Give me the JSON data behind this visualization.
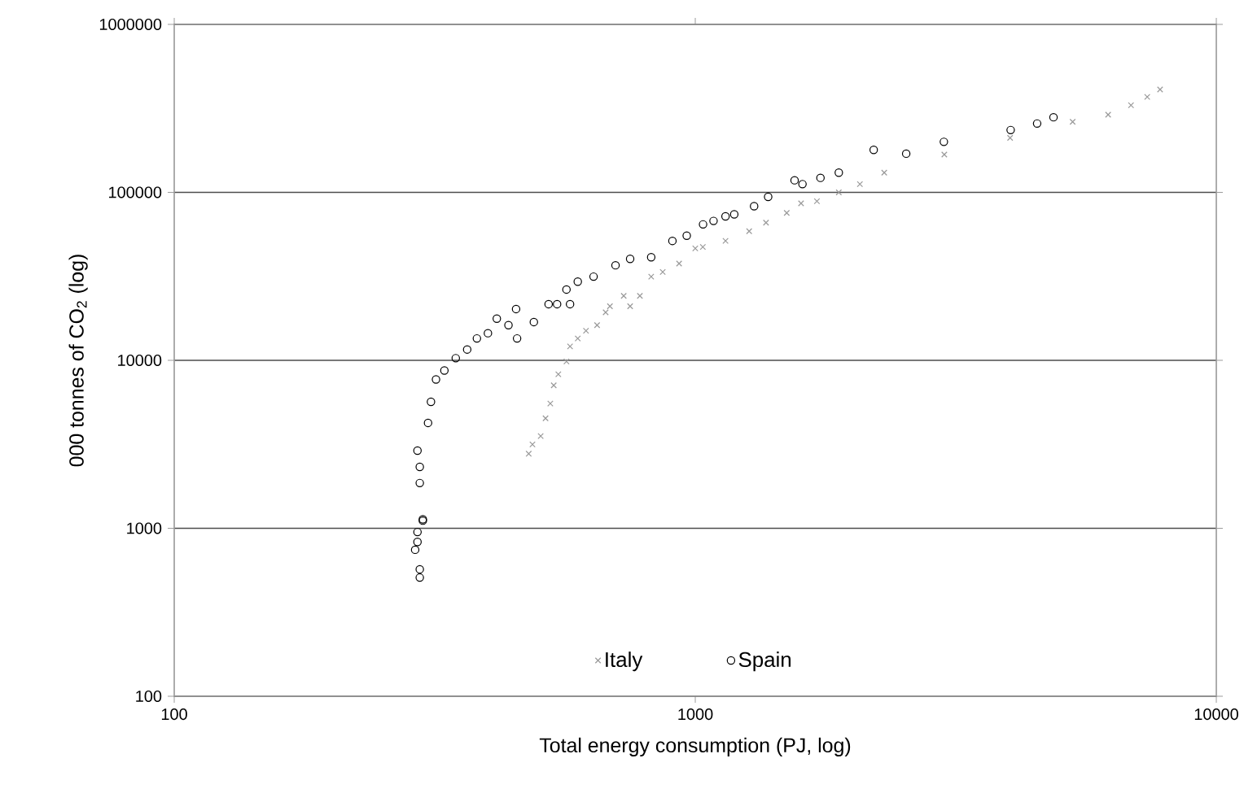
{
  "chart_data": {
    "type": "scatter",
    "xlabel": "Total energy consumption (PJ, log)",
    "ylabel": "000 tonnes of CO$_{2}$ (log)",
    "log": "xy",
    "xlim": [
      100,
      10000
    ],
    "ylim": [
      100,
      1000000
    ],
    "xticks": [
      100,
      1000,
      10000
    ],
    "yticks": [
      100,
      1000,
      10000,
      100000,
      1000000
    ],
    "grid": "y",
    "legend": "bottom",
    "series": [
      {
        "name": "Italy",
        "color": "#999999",
        "marker": "cross",
        "x": [
          479,
          487,
          505,
          516,
          527,
          535,
          546,
          566,
          575,
          595,
          617,
          648,
          673,
          686,
          729,
          750,
          783,
          823,
          866,
          931,
          1000,
          1034,
          1143,
          1269,
          1367,
          1498,
          1596,
          1712,
          1886,
          2070,
          2305,
          3006,
          4020,
          5300,
          6200,
          6860,
          7370,
          7800
        ],
        "values": [
          2780,
          3160,
          3540,
          4520,
          5530,
          7100,
          8260,
          9850,
          12100,
          13500,
          15000,
          16200,
          19300,
          21000,
          24200,
          21000,
          24200,
          31500,
          33600,
          37700,
          46400,
          47300,
          51400,
          58700,
          66000,
          75500,
          86000,
          88600,
          100000,
          112000,
          131000,
          168000,
          211000,
          263000,
          290000,
          330000,
          370000,
          410000
        ]
      },
      {
        "name": "Spain",
        "color": "#000000",
        "marker": "circle",
        "x": [
          296,
          296,
          290,
          293,
          293,
          300,
          300,
          296,
          296,
          293,
          307,
          311,
          318,
          330,
          347,
          365,
          381,
          400,
          416,
          438,
          453,
          455,
          490,
          523,
          543,
          575,
          566,
          595,
          638,
          703,
          750,
          823,
          904,
          963,
          1035,
          1084,
          1143,
          1188,
          1297,
          1380,
          1551,
          1606,
          1739,
          1886,
          2200,
          2540,
          3000,
          4030,
          4530,
          4870
        ],
        "values": [
          509,
          570,
          745,
          830,
          950,
          1130,
          1110,
          1860,
          2320,
          2900,
          4240,
          5660,
          7700,
          8700,
          10300,
          11600,
          13500,
          14500,
          17700,
          16200,
          20200,
          13500,
          16900,
          21600,
          21600,
          21600,
          26400,
          29400,
          31500,
          36800,
          40200,
          41100,
          51400,
          55200,
          64500,
          67600,
          72000,
          74000,
          82700,
          94000,
          118000,
          112000,
          122000,
          131000,
          179000,
          170000,
          200000,
          235000,
          257000,
          280000
        ]
      }
    ]
  }
}
